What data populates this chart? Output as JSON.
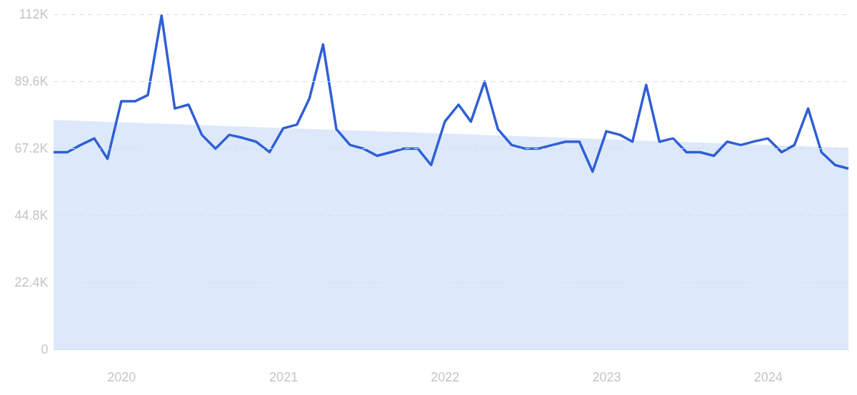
{
  "chart_data": {
    "type": "line",
    "x": [
      "2019-08",
      "2019-09",
      "2019-10",
      "2019-11",
      "2019-12",
      "2020-01",
      "2020-02",
      "2020-03",
      "2020-04",
      "2020-05",
      "2020-06",
      "2020-07",
      "2020-08",
      "2020-09",
      "2020-10",
      "2020-11",
      "2020-12",
      "2021-01",
      "2021-02",
      "2021-03",
      "2021-04",
      "2021-05",
      "2021-06",
      "2021-07",
      "2021-08",
      "2021-09",
      "2021-10",
      "2021-11",
      "2021-12",
      "2022-01",
      "2022-02",
      "2022-03",
      "2022-04",
      "2022-05",
      "2022-06",
      "2022-07",
      "2022-08",
      "2022-09",
      "2022-10",
      "2022-11",
      "2022-12",
      "2023-01",
      "2023-02",
      "2023-03",
      "2023-04",
      "2023-05",
      "2023-06",
      "2023-07",
      "2023-08",
      "2023-09",
      "2023-10",
      "2023-11",
      "2023-12",
      "2024-01",
      "2024-02",
      "2024-03",
      "2024-04",
      "2024-05",
      "2024-06",
      "2024-07"
    ],
    "series": [
      {
        "type": "area",
        "color": "#dde9fb",
        "x": [
          "2019-08",
          "2024-07"
        ],
        "values": [
          76700,
          67400
        ]
      },
      {
        "color": "#2f5fd6",
        "values": [
          65900,
          65900,
          68300,
          70500,
          63700,
          82900,
          82900,
          85000,
          111600,
          80500,
          81800,
          71700,
          67100,
          71700,
          70700,
          69400,
          65900,
          73900,
          75100,
          83800,
          101900,
          73600,
          68300,
          67100,
          64700,
          65900,
          67100,
          67100,
          61600,
          76100,
          81800,
          76100,
          89500,
          73600,
          68300,
          67100,
          67100,
          68300,
          69400,
          69400,
          59400,
          72900,
          71700,
          69400,
          88400,
          69400,
          70500,
          65900,
          65900,
          64700,
          69400,
          68300,
          69500,
          70500,
          65900,
          68300,
          80500,
          65900,
          61600,
          60400
        ]
      }
    ],
    "xlim": [
      "2019-08",
      "2024-07"
    ],
    "xticks": [
      {
        "value": "2020-01",
        "label": "2020"
      },
      {
        "value": "2021-01",
        "label": "2021"
      },
      {
        "value": "2022-01",
        "label": "2022"
      },
      {
        "value": "2023-01",
        "label": "2023"
      },
      {
        "value": "2024-01",
        "label": "2024"
      }
    ],
    "ylim": [
      0,
      112000
    ],
    "yticks": [
      0,
      {
        "value": 22400,
        "label": "22.4K"
      },
      {
        "value": 44800,
        "label": "44.8K"
      },
      {
        "value": 67200,
        "label": "67.2K"
      },
      {
        "value": 89600,
        "label": "89.6K"
      },
      {
        "value": 112000,
        "label": "112K"
      }
    ],
    "grid": "y",
    "line_style": "solid"
  }
}
